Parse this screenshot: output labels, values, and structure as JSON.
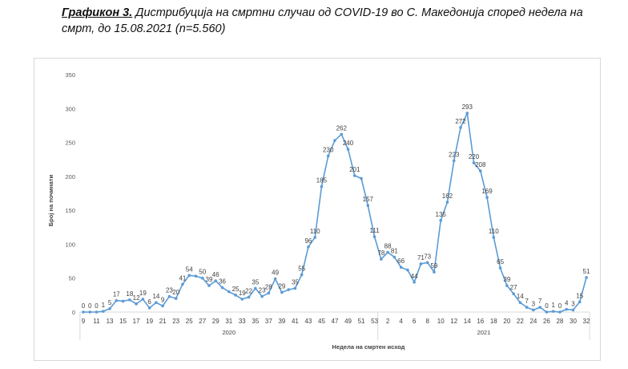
{
  "figure": {
    "label": "Графикон 3.",
    "caption": " Дистрибуција на смртни случаи од COVID-19 во С. Македонија според недела на смрт, до 15.08.2021 (n=5.560)"
  },
  "chart_data": {
    "type": "line",
    "title": "Дистрибуција на смртни случаи од COVID-19 во С. Македонија според недела на смрт, до 15.08.2021 (n=5.560)",
    "xlabel": "Недела на смртен исход",
    "ylabel": "Број на починати",
    "ylim": [
      0,
      350
    ],
    "yticks": [
      0,
      50,
      100,
      150,
      200,
      250,
      300,
      350
    ],
    "grid": false,
    "color": "#5b9bd5",
    "groups": [
      {
        "year": "2020",
        "weeks": [
          9,
          10,
          11,
          12,
          13,
          14,
          15,
          16,
          17,
          18,
          19,
          20,
          21,
          22,
          23,
          24,
          25,
          26,
          27,
          28,
          29,
          30,
          31,
          32,
          33,
          34,
          35,
          36,
          37,
          38,
          39,
          40,
          41,
          42,
          43,
          44,
          45,
          46,
          47,
          48,
          49,
          50,
          51,
          52,
          53
        ],
        "values": [
          0,
          0,
          0,
          1,
          5,
          17,
          16,
          18,
          12,
          19,
          6,
          14,
          9,
          23,
          20,
          41,
          54,
          53,
          50,
          39,
          46,
          36,
          30,
          25,
          19,
          22,
          35,
          23,
          28,
          49,
          29,
          33,
          35,
          55,
          96,
          110,
          185,
          230,
          253,
          262,
          240,
          201,
          197,
          157,
          111
        ],
        "labeled": [
          1,
          1,
          1,
          1,
          1,
          1,
          0,
          1,
          1,
          1,
          1,
          1,
          1,
          1,
          1,
          1,
          1,
          0,
          1,
          1,
          1,
          1,
          0,
          1,
          1,
          1,
          1,
          1,
          1,
          1,
          1,
          0,
          1,
          1,
          1,
          1,
          1,
          1,
          0,
          1,
          1,
          1,
          0,
          1,
          1
        ]
      },
      {
        "year": "2021",
        "weeks": [
          1,
          2,
          3,
          4,
          5,
          6,
          7,
          8,
          9,
          10,
          11,
          12,
          13,
          14,
          15,
          16,
          17,
          18,
          19,
          20,
          21,
          22,
          23,
          24,
          25,
          26,
          27,
          28,
          29,
          30,
          31,
          32
        ],
        "values": [
          78,
          88,
          81,
          66,
          62,
          44,
          71,
          73,
          59,
          135,
          162,
          223,
          272,
          293,
          220,
          208,
          169,
          110,
          65,
          39,
          27,
          14,
          7,
          3,
          7,
          0,
          1,
          0,
          4,
          3,
          15,
          51
        ],
        "labeled": [
          1,
          1,
          1,
          1,
          0,
          1,
          1,
          1,
          1,
          1,
          1,
          1,
          1,
          1,
          1,
          1,
          1,
          1,
          1,
          1,
          1,
          1,
          1,
          1,
          1,
          1,
          1,
          1,
          1,
          1,
          1,
          1
        ]
      }
    ]
  }
}
